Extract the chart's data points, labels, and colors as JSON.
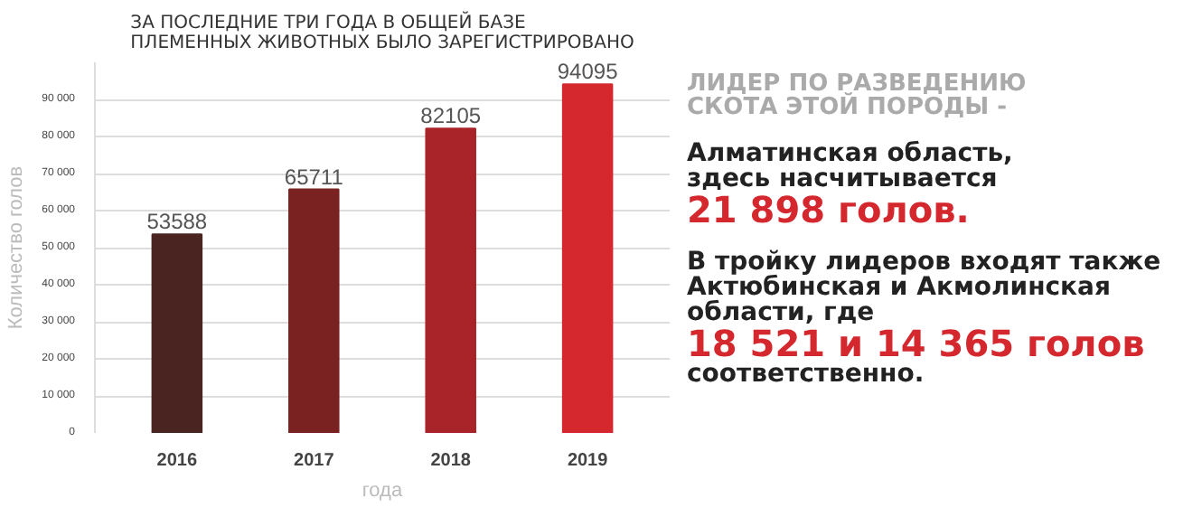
{
  "chart_data": {
    "type": "bar",
    "title": "ЗА ПОСЛЕДНИЕ ТРИ ГОДА В ОБЩЕЙ БАЗЕ\nПЛЕМЕННЫХ ЖИВОТНЫХ БЫЛО ЗАРЕГИСТРИРОВАНО",
    "xlabel": "года",
    "ylabel": "Количество голов",
    "categories": [
      "2016",
      "2017",
      "2018",
      "2019"
    ],
    "values": [
      53588,
      65711,
      82105,
      94095
    ],
    "colors": [
      "#4a2421",
      "#7a2222",
      "#a82428",
      "#d4282e"
    ],
    "data_labels": true,
    "ylim": [
      0,
      100000
    ],
    "yticks": [
      {
        "value": 0,
        "label": "0"
      },
      {
        "value": 10000,
        "label": "10 000"
      },
      {
        "value": 20000,
        "label": "20 000"
      },
      {
        "value": 30000,
        "label": "30 000"
      },
      {
        "value": 40000,
        "label": "40 000"
      },
      {
        "value": 50000,
        "label": "50 000"
      },
      {
        "value": 60000,
        "label": "60 000"
      },
      {
        "value": 70000,
        "label": "70 000"
      },
      {
        "value": 80000,
        "label": "80 000"
      },
      {
        "value": 90000,
        "label": "90 000"
      }
    ],
    "grid": "y",
    "annotations": [
      "ЛИДЕР ПО РАЗВЕДЕНИЮ\nСКОТА ЭТОЙ ПОРОДЫ -",
      "Алматинская область,\nздесь насчитывается",
      "21 898 голов.",
      "В тройку лидеров входят также\nАктюбинская и Акмолинская\nобласти, где",
      "18 521 и 14 365 голов",
      "соответственно."
    ]
  }
}
